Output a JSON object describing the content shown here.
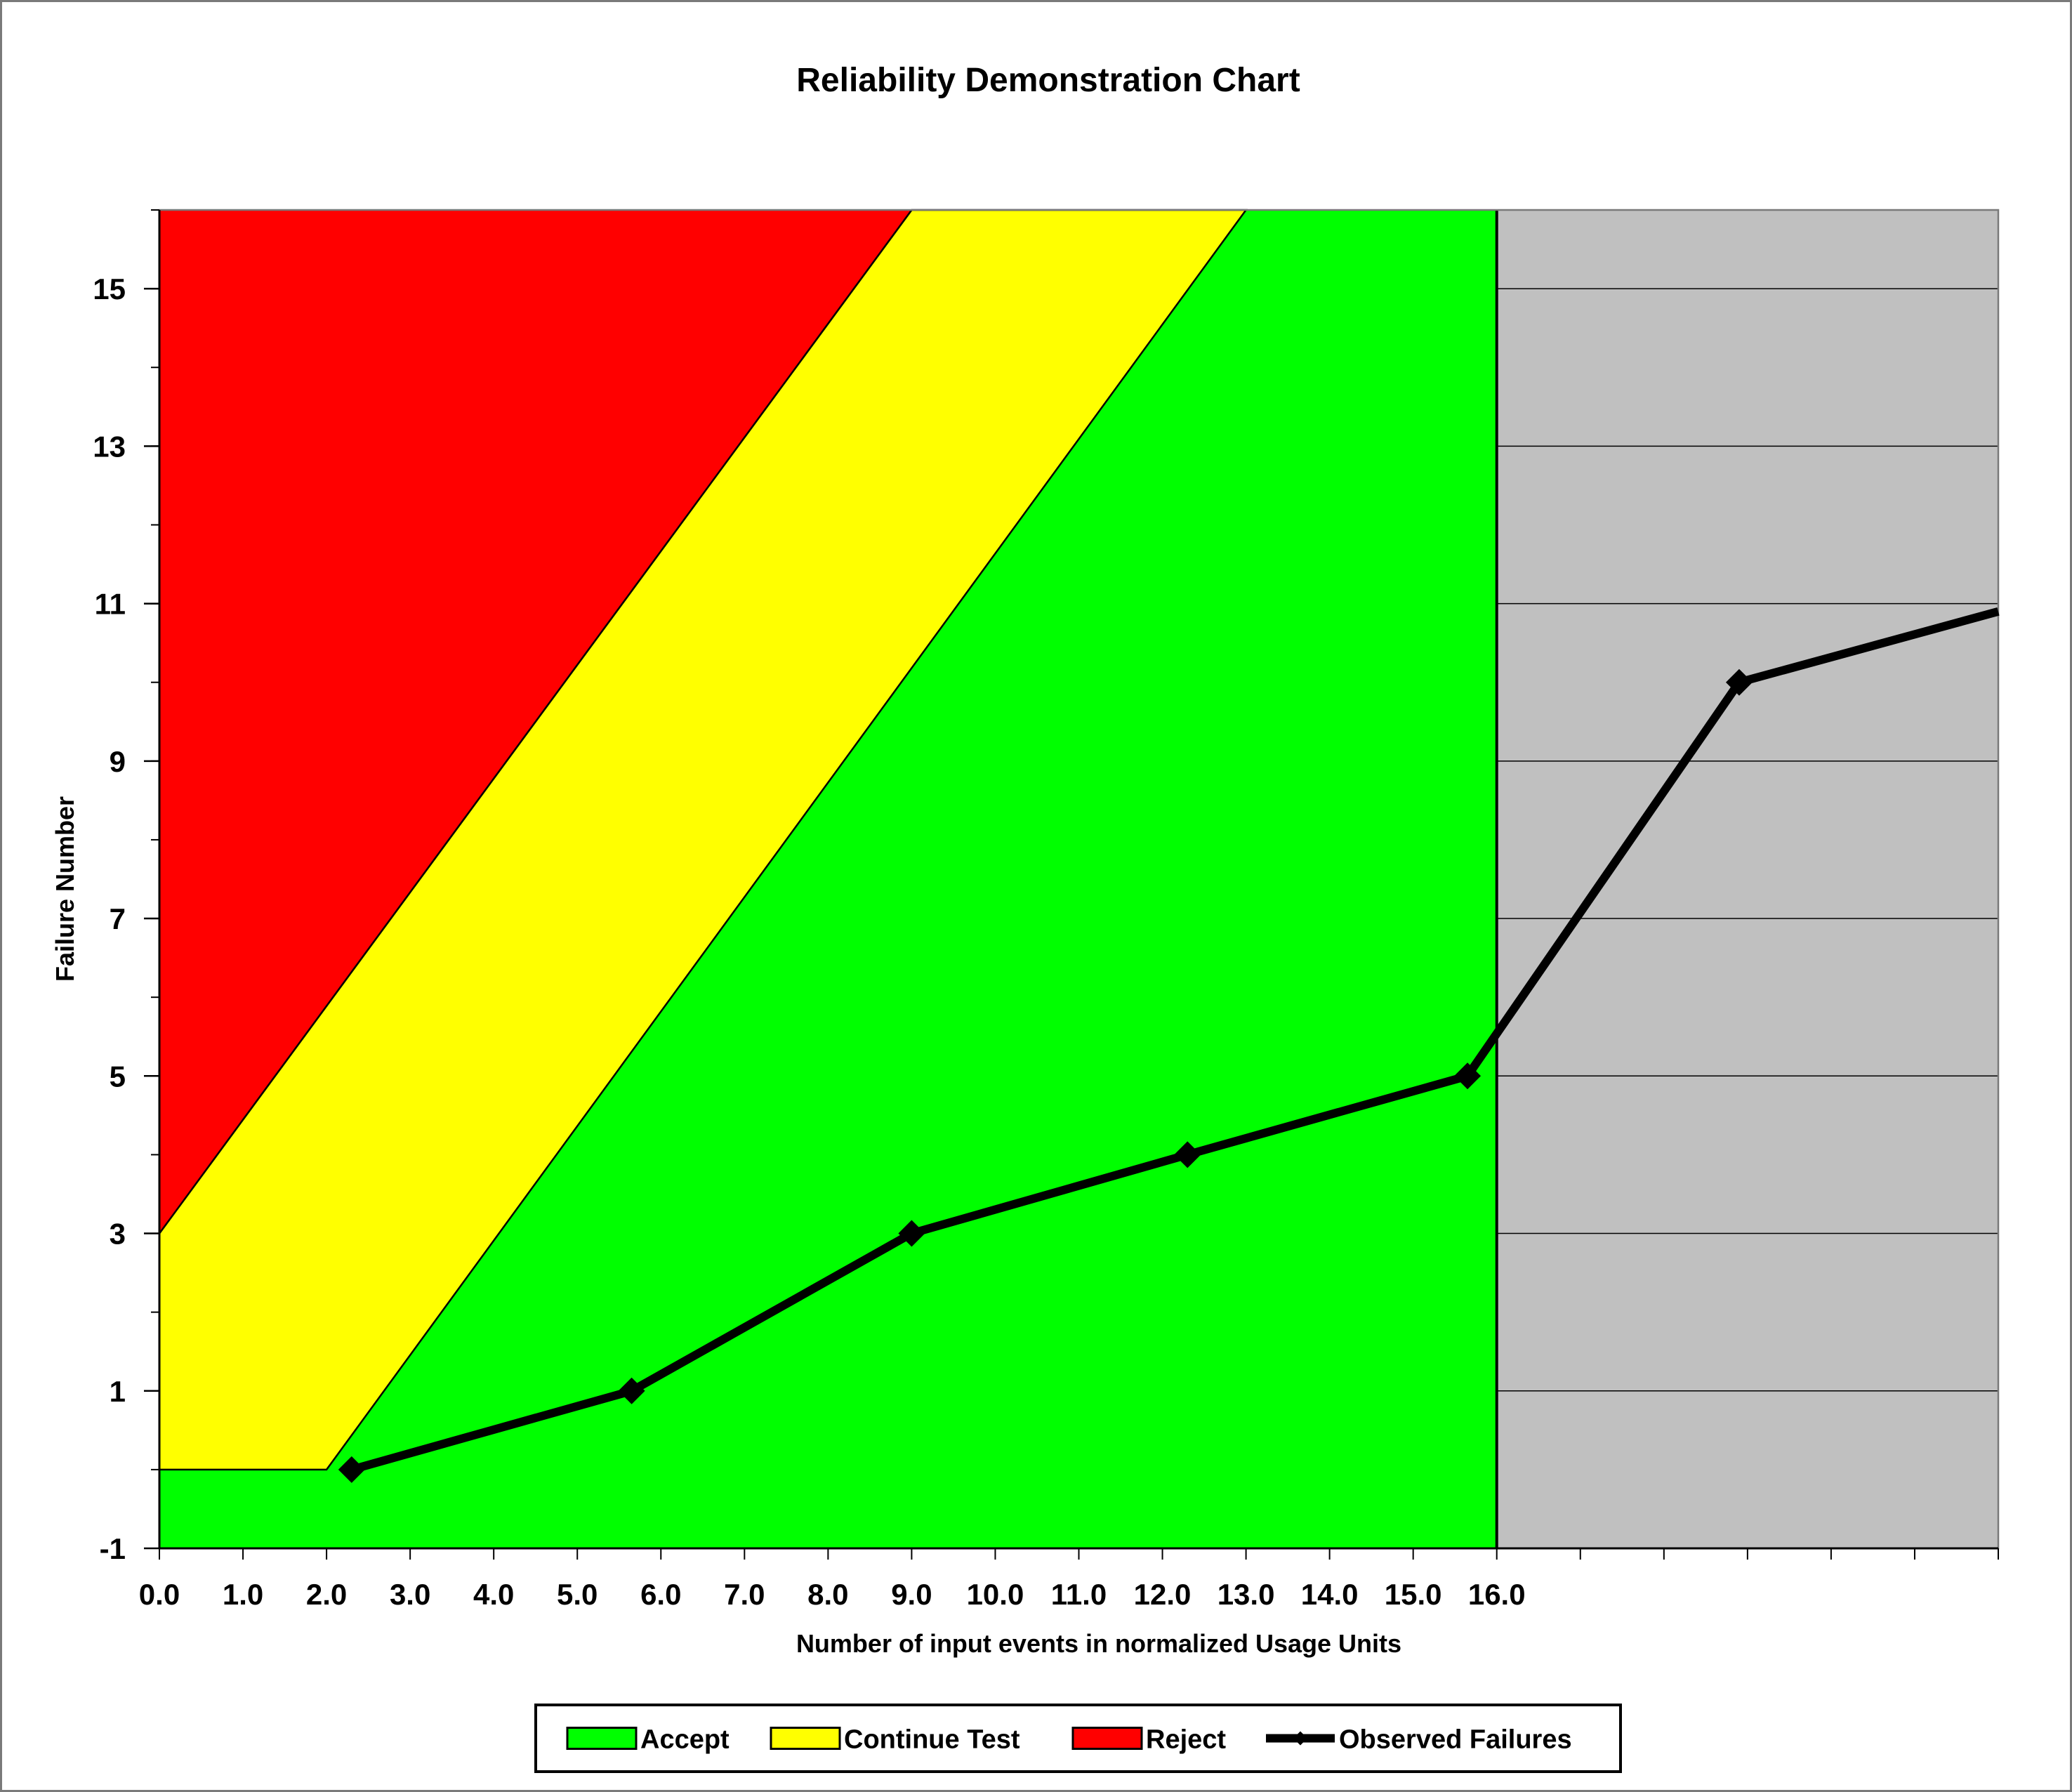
{
  "chart_data": {
    "type": "line",
    "title": "Reliability Demonstration Chart",
    "xlabel": "Number of input events in normalized Usage Units",
    "ylabel": "Failure Number",
    "xlim": [
      0,
      22
    ],
    "ylim": [
      -1,
      16
    ],
    "grid": true,
    "legend_position": "bottom",
    "x_tick_values": [
      0,
      1,
      2,
      3,
      4,
      5,
      6,
      7,
      8,
      9,
      10,
      11,
      12,
      13,
      14,
      15,
      16
    ],
    "x_tick_labels": [
      "0.0",
      "1.0",
      "2.0",
      "3.0",
      "4.0",
      "5.0",
      "6.0",
      "7.0",
      "8.0",
      "9.0",
      "10.0",
      "11.0",
      "12.0",
      "13.0",
      "14.0",
      "15.0",
      "16.0"
    ],
    "x_minor_ticks": [
      0,
      1,
      2,
      3,
      4,
      5,
      6,
      7,
      8,
      9,
      10,
      11,
      12,
      13,
      14,
      15,
      16,
      17,
      18,
      19,
      20,
      21,
      22
    ],
    "y_tick_values": [
      -1,
      1,
      3,
      5,
      7,
      9,
      11,
      13,
      15
    ],
    "y_tick_labels": [
      "-1",
      "1",
      "3",
      "5",
      "7",
      "9",
      "11",
      "13",
      "15"
    ],
    "y_minor_ticks": [
      -1,
      0,
      1,
      2,
      3,
      4,
      5,
      6,
      7,
      8,
      9,
      10,
      11,
      12,
      13,
      14,
      15,
      16
    ],
    "gridlines_y": [
      1,
      3,
      5,
      7,
      9,
      11,
      13,
      15
    ],
    "demonstration_limit_x": 16,
    "colors": {
      "accept": "#00ff00",
      "continue": "#ffff00",
      "reject": "#ff0000",
      "beyond": "#c0c0c0",
      "observed": "#000000"
    },
    "regions": {
      "reject_boundary": [
        [
          0,
          3
        ],
        [
          9,
          16
        ]
      ],
      "accept_boundary": [
        [
          0,
          0
        ],
        [
          2,
          0
        ],
        [
          13,
          16
        ]
      ]
    },
    "series": [
      {
        "name": "Observed Failures",
        "x": [
          2.3,
          5.65,
          9.0,
          12.3,
          15.65,
          18.9,
          22.0
        ],
        "y": [
          0,
          1,
          3,
          4,
          5,
          10,
          10.9
        ],
        "markers": [
          true,
          true,
          true,
          true,
          true,
          true,
          false
        ]
      }
    ],
    "legend": [
      {
        "name": "Accept",
        "kind": "swatch",
        "color": "#00ff00"
      },
      {
        "name": "Continue Test",
        "kind": "swatch",
        "color": "#ffff00"
      },
      {
        "name": "Reject",
        "kind": "swatch",
        "color": "#ff0000"
      },
      {
        "name": "Observed Failures",
        "kind": "line",
        "color": "#000000"
      }
    ]
  }
}
